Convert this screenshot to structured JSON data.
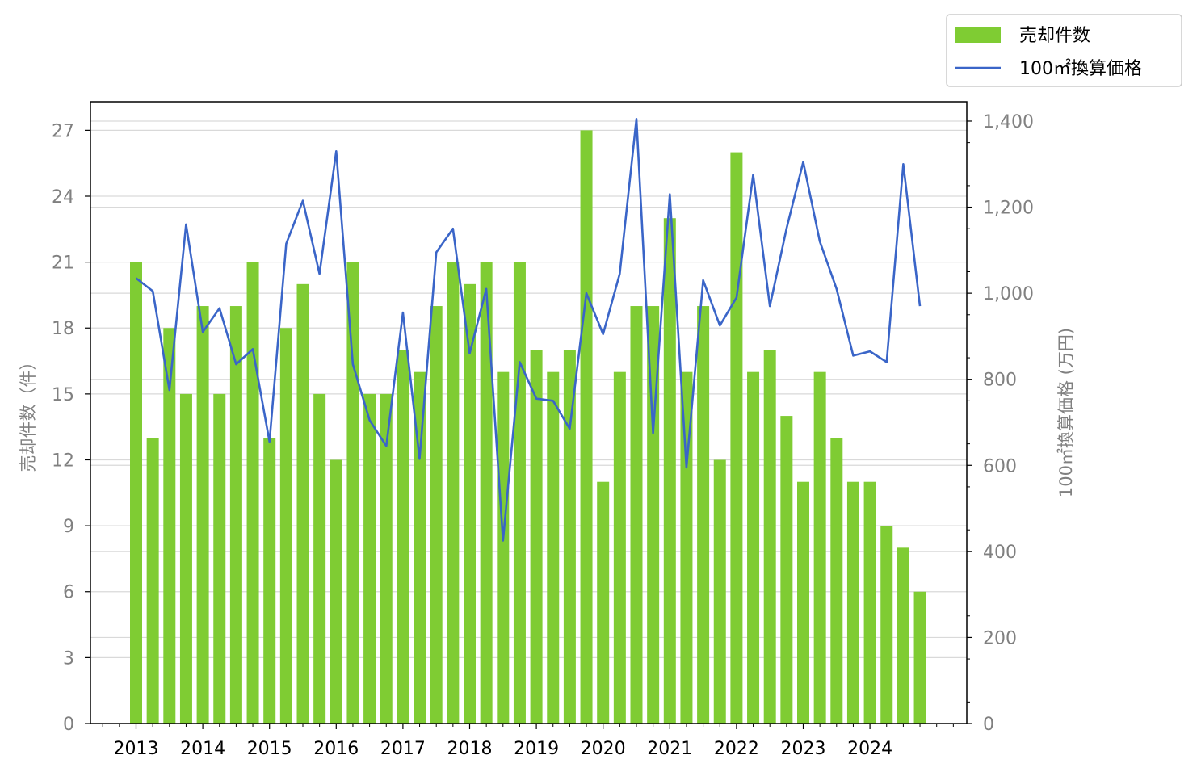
{
  "chart_data": {
    "type": "bar",
    "x_tick_labels": [
      "2013",
      "2014",
      "2015",
      "2016",
      "2017",
      "2018",
      "2019",
      "2020",
      "2021",
      "2022",
      "2023",
      "2024"
    ],
    "ylabel_left": "売却件数（件）",
    "ylabel_right": "100㎡換算価格 (万円)",
    "ylim_left": [
      0,
      28.3
    ],
    "ylim_right": [
      0,
      1445
    ],
    "yticks_left": [
      "0",
      "3",
      "6",
      "9",
      "12",
      "15",
      "18",
      "21",
      "24",
      "27"
    ],
    "yticks_right": [
      "0",
      "200",
      "400",
      "600",
      "800",
      "1,000",
      "1,200",
      "1,400"
    ],
    "grid": "horizontal",
    "legend": {
      "placement": "top-right-outside"
    },
    "colors": {
      "bar": "#7fcc33",
      "line": "#3a65c8"
    },
    "series": [
      {
        "name": "売却件数",
        "type": "bar",
        "axis": "left",
        "values": [
          21,
          13,
          18,
          15,
          19,
          15,
          19,
          21,
          13,
          18,
          20,
          15,
          12,
          21,
          15,
          15,
          17,
          16,
          19,
          21,
          20,
          21,
          16,
          21,
          17,
          16,
          17,
          27,
          11,
          16,
          19,
          19,
          23,
          16,
          19,
          12,
          26,
          16,
          17,
          14,
          11,
          16,
          13,
          11,
          11,
          9,
          8,
          6
        ]
      },
      {
        "name": "100㎡換算価格",
        "type": "line",
        "axis": "right",
        "values": [
          1035,
          1005,
          775,
          1160,
          910,
          965,
          835,
          870,
          655,
          1115,
          1215,
          1045,
          1330,
          835,
          705,
          645,
          955,
          615,
          1095,
          1150,
          860,
          1010,
          425,
          840,
          755,
          750,
          685,
          1000,
          905,
          1045,
          1405,
          675,
          1230,
          595,
          1030,
          925,
          990,
          1275,
          970,
          1150,
          1305,
          1120,
          1010,
          855,
          865,
          840,
          1300,
          970
        ]
      }
    ]
  }
}
